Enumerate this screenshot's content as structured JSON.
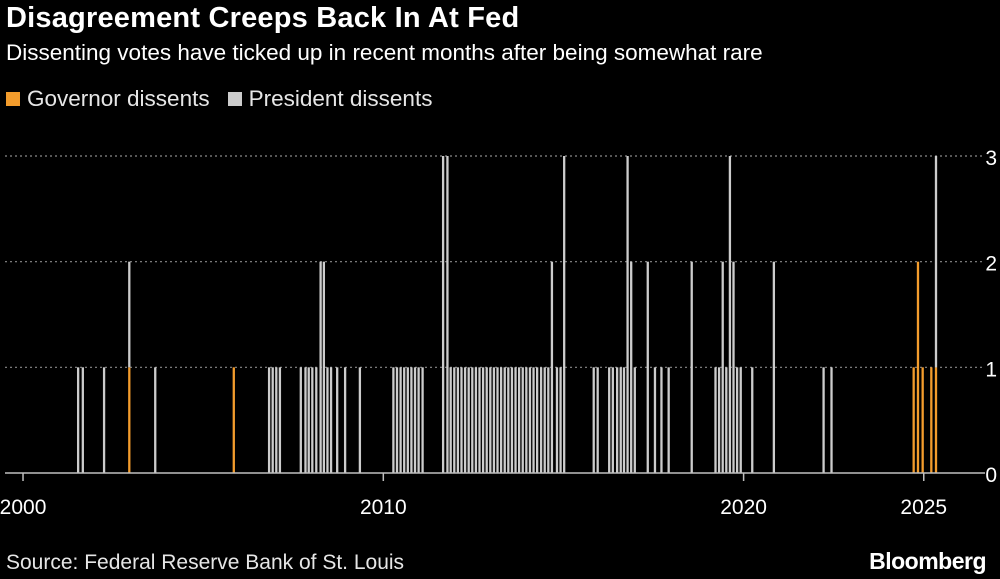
{
  "header": {
    "title": "Disagreement Creeps Back In At Fed",
    "subtitle": "Dissenting votes have ticked up in recent months after being somewhat rare"
  },
  "legend": {
    "governor_label": "Governor dissents",
    "president_label": "President dissents"
  },
  "footer": {
    "source": "Source: Federal Reserve Bank of St. Louis",
    "brand": "Bloomberg"
  },
  "colors": {
    "governor": "#f39c2c",
    "president": "#cccccc",
    "grid": "#8a8a8a",
    "axis": "#bfbfbf",
    "background": "#000000"
  },
  "chart_data": {
    "type": "bar",
    "stacked": true,
    "title": "Disagreement Creeps Back In At Fed",
    "subtitle": "Dissenting votes have ticked up in recent months after being somewhat rare",
    "xlabel": "",
    "ylabel": "",
    "xlim": [
      1999.5,
      2026.7
    ],
    "ylim": [
      0,
      3
    ],
    "x_ticks": [
      2000,
      2010,
      2020,
      2025
    ],
    "x_tick_labels": [
      "2000",
      "2010",
      "2020",
      "2025"
    ],
    "y_ticks": [
      0,
      1,
      2,
      3
    ],
    "y_tick_labels": [
      "0",
      "1",
      "2",
      "3"
    ],
    "grid": true,
    "legend_position": "top-left",
    "series": [
      {
        "name": "Governor dissents",
        "meetings": [
          {
            "date": 2002.95,
            "value": 1
          },
          {
            "date": 2005.85,
            "value": 1
          },
          {
            "date": 2024.72,
            "value": 1
          },
          {
            "date": 2024.84,
            "value": 2
          },
          {
            "date": 2024.97,
            "value": 1
          },
          {
            "date": 2025.21,
            "value": 1
          },
          {
            "date": 2025.34,
            "value": 1
          }
        ]
      },
      {
        "name": "President dissents",
        "meetings": [
          {
            "date": 2001.53,
            "value": 1
          },
          {
            "date": 2001.66,
            "value": 1
          },
          {
            "date": 2002.25,
            "value": 1
          },
          {
            "date": 2002.95,
            "value": 1
          },
          {
            "date": 2003.67,
            "value": 1
          },
          {
            "date": 2006.83,
            "value": 1
          },
          {
            "date": 2006.93,
            "value": 1
          },
          {
            "date": 2007.03,
            "value": 1
          },
          {
            "date": 2007.13,
            "value": 1
          },
          {
            "date": 2007.71,
            "value": 1
          },
          {
            "date": 2007.84,
            "value": 1
          },
          {
            "date": 2007.93,
            "value": 1
          },
          {
            "date": 2008.03,
            "value": 1
          },
          {
            "date": 2008.14,
            "value": 1
          },
          {
            "date": 2008.26,
            "value": 2
          },
          {
            "date": 2008.35,
            "value": 2
          },
          {
            "date": 2008.45,
            "value": 1
          },
          {
            "date": 2008.55,
            "value": 1
          },
          {
            "date": 2008.72,
            "value": 1
          },
          {
            "date": 2008.94,
            "value": 1
          },
          {
            "date": 2009.35,
            "value": 1
          },
          {
            "date": 2010.28,
            "value": 1
          },
          {
            "date": 2010.38,
            "value": 1
          },
          {
            "date": 2010.48,
            "value": 1
          },
          {
            "date": 2010.58,
            "value": 1
          },
          {
            "date": 2010.68,
            "value": 1
          },
          {
            "date": 2010.78,
            "value": 1
          },
          {
            "date": 2010.88,
            "value": 1
          },
          {
            "date": 2010.98,
            "value": 1
          },
          {
            "date": 2011.09,
            "value": 1
          },
          {
            "date": 2011.66,
            "value": 3
          },
          {
            "date": 2011.78,
            "value": 3
          },
          {
            "date": 2011.87,
            "value": 1
          },
          {
            "date": 2011.97,
            "value": 1
          },
          {
            "date": 2012.07,
            "value": 1
          },
          {
            "date": 2012.17,
            "value": 1
          },
          {
            "date": 2012.27,
            "value": 1
          },
          {
            "date": 2012.37,
            "value": 1
          },
          {
            "date": 2012.47,
            "value": 1
          },
          {
            "date": 2012.57,
            "value": 1
          },
          {
            "date": 2012.67,
            "value": 1
          },
          {
            "date": 2012.77,
            "value": 1
          },
          {
            "date": 2012.87,
            "value": 1
          },
          {
            "date": 2012.97,
            "value": 1
          },
          {
            "date": 2013.07,
            "value": 1
          },
          {
            "date": 2013.17,
            "value": 1
          },
          {
            "date": 2013.27,
            "value": 1
          },
          {
            "date": 2013.37,
            "value": 1
          },
          {
            "date": 2013.47,
            "value": 1
          },
          {
            "date": 2013.57,
            "value": 1
          },
          {
            "date": 2013.67,
            "value": 1
          },
          {
            "date": 2013.77,
            "value": 1
          },
          {
            "date": 2013.87,
            "value": 1
          },
          {
            "date": 2013.97,
            "value": 1
          },
          {
            "date": 2014.07,
            "value": 1
          },
          {
            "date": 2014.17,
            "value": 1
          },
          {
            "date": 2014.27,
            "value": 1
          },
          {
            "date": 2014.38,
            "value": 1
          },
          {
            "date": 2014.48,
            "value": 1
          },
          {
            "date": 2014.58,
            "value": 1
          },
          {
            "date": 2014.68,
            "value": 2
          },
          {
            "date": 2014.82,
            "value": 1
          },
          {
            "date": 2014.92,
            "value": 1
          },
          {
            "date": 2015.02,
            "value": 3
          },
          {
            "date": 2015.84,
            "value": 1
          },
          {
            "date": 2015.95,
            "value": 1
          },
          {
            "date": 2016.27,
            "value": 1
          },
          {
            "date": 2016.37,
            "value": 1
          },
          {
            "date": 2016.49,
            "value": 1
          },
          {
            "date": 2016.59,
            "value": 1
          },
          {
            "date": 2016.68,
            "value": 1
          },
          {
            "date": 2016.78,
            "value": 3
          },
          {
            "date": 2016.88,
            "value": 2
          },
          {
            "date": 2016.98,
            "value": 1
          },
          {
            "date": 2017.34,
            "value": 2
          },
          {
            "date": 2017.54,
            "value": 1
          },
          {
            "date": 2017.72,
            "value": 1
          },
          {
            "date": 2017.92,
            "value": 1
          },
          {
            "date": 2018.56,
            "value": 2
          },
          {
            "date": 2019.22,
            "value": 1
          },
          {
            "date": 2019.32,
            "value": 1
          },
          {
            "date": 2019.42,
            "value": 2
          },
          {
            "date": 2019.52,
            "value": 1
          },
          {
            "date": 2019.62,
            "value": 3
          },
          {
            "date": 2019.72,
            "value": 2
          },
          {
            "date": 2019.82,
            "value": 1
          },
          {
            "date": 2019.92,
            "value": 1
          },
          {
            "date": 2020.24,
            "value": 1
          },
          {
            "date": 2020.84,
            "value": 2
          },
          {
            "date": 2022.22,
            "value": 1
          },
          {
            "date": 2022.44,
            "value": 1
          },
          {
            "date": 2025.34,
            "value": 2
          }
        ]
      }
    ]
  }
}
